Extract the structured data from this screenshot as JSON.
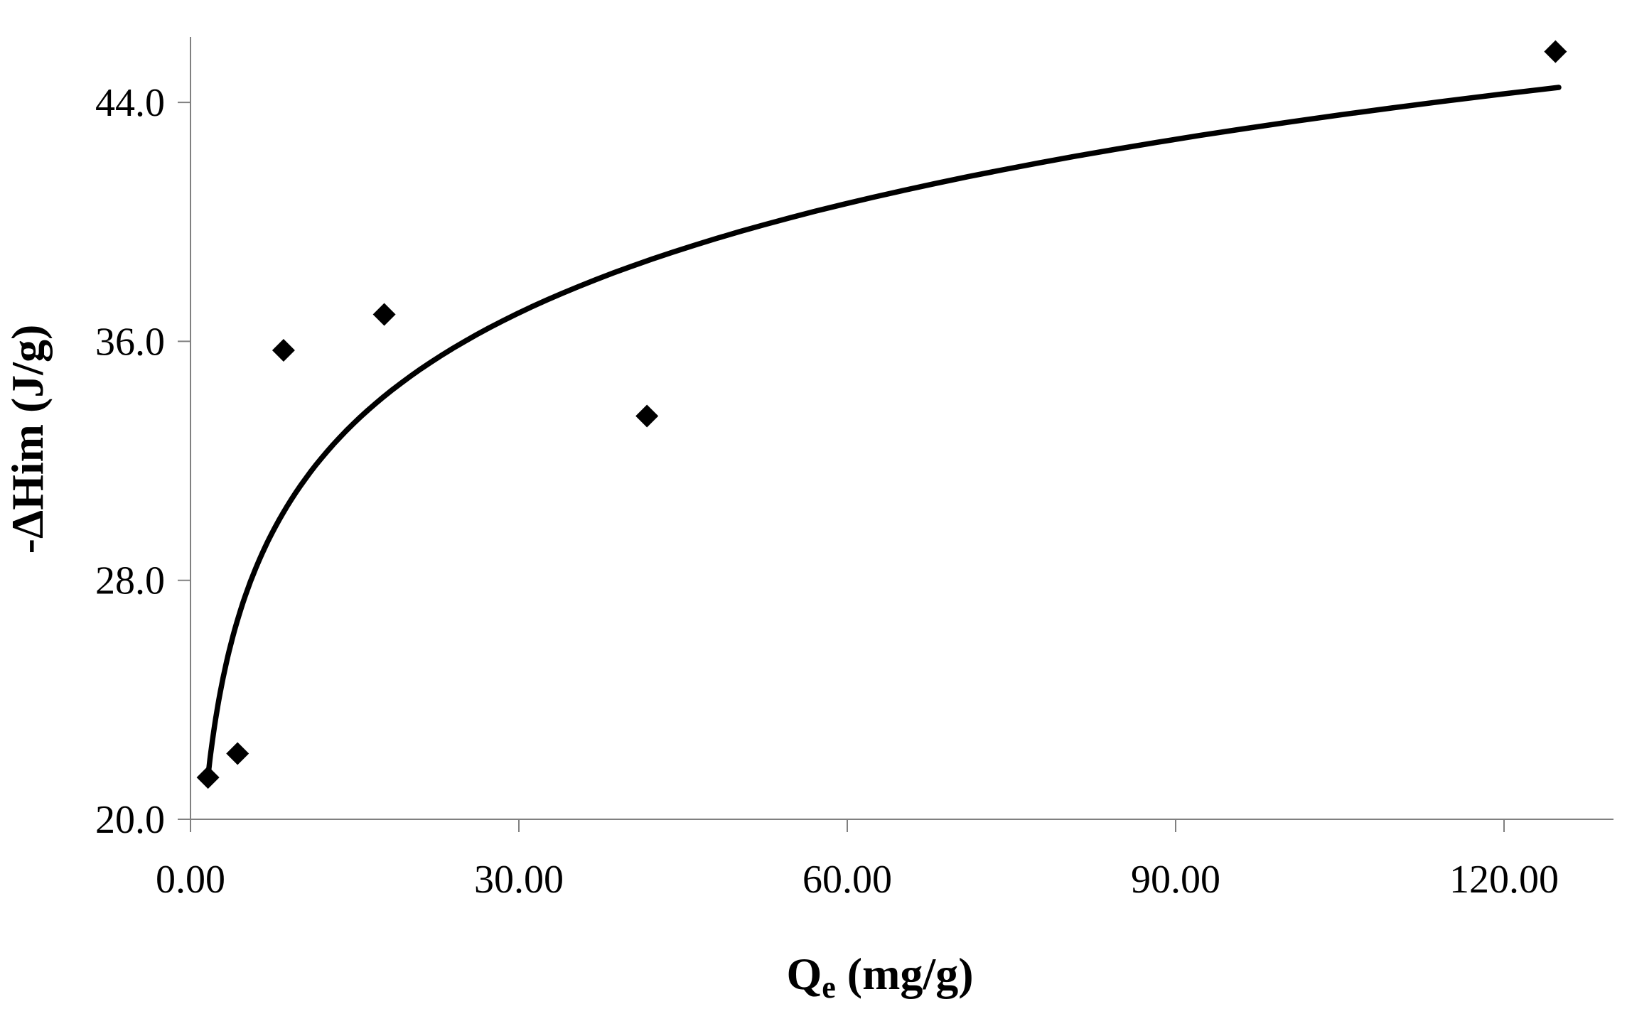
{
  "colors": {
    "axis": "#808080",
    "marker": "#000000",
    "curve": "#000000",
    "text": "#000000",
    "background": "#ffffff"
  },
  "chart_data": {
    "type": "scatter",
    "title": "",
    "xlabel": "Qe (mg/g)",
    "xlabel_parts": {
      "main": "Q",
      "sub": "e",
      "rest": " (mg/g)"
    },
    "ylabel": "-ΔHim (J/g)",
    "xlim": [
      0,
      130
    ],
    "ylim": [
      20,
      46
    ],
    "x_ticks": [
      0,
      30,
      60,
      90,
      120
    ],
    "x_tick_labels": [
      "0.00",
      "30.00",
      "60.00",
      "90.00",
      "120.00"
    ],
    "y_ticks": [
      20,
      28,
      36,
      44
    ],
    "y_tick_labels": [
      "20.0",
      "28.0",
      "36.0",
      "44.0"
    ],
    "grid": false,
    "legend": false,
    "series": [
      {
        "name": "data-points",
        "kind": "scatter",
        "marker": "diamond",
        "color": "#000000",
        "points": [
          [
            1.6,
            21.4
          ],
          [
            4.3,
            22.2
          ],
          [
            8.5,
            35.7
          ],
          [
            17.7,
            36.9
          ],
          [
            41.7,
            33.5
          ],
          [
            124.7,
            45.7
          ]
        ]
      },
      {
        "name": "fit-curve",
        "kind": "line",
        "color": "#000000",
        "model": "logarithmic",
        "params": {
          "a": 18.96,
          "b": 5.29
        },
        "x_range": [
          1.62,
          125
        ]
      }
    ]
  }
}
